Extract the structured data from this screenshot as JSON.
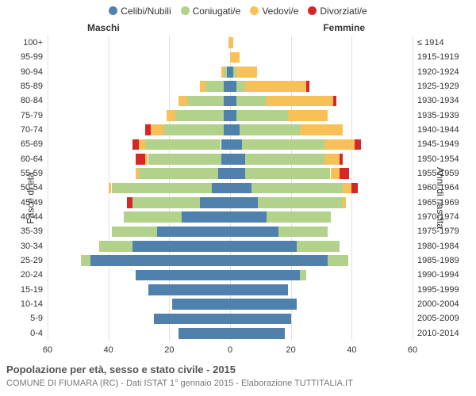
{
  "legend": {
    "items": [
      {
        "label": "Celibi/Nubili",
        "color": "#4f81ac"
      },
      {
        "label": "Coniugati/e",
        "color": "#b2d18b"
      },
      {
        "label": "Vedovi/e",
        "color": "#f8c158"
      },
      {
        "label": "Divorziati/e",
        "color": "#d62728"
      }
    ]
  },
  "header": {
    "male": "Maschi",
    "female": "Femmine"
  },
  "axis_left_title": "Fasce di età",
  "axis_right_title": "Anni di nascita",
  "x_axis": {
    "min": -60,
    "max": 60,
    "ticks": [
      -60,
      -40,
      -20,
      0,
      20,
      40,
      60
    ],
    "tick_labels": [
      "60",
      "40",
      "20",
      "0",
      "20",
      "40",
      "60"
    ]
  },
  "colors": {
    "single": "#4f81ac",
    "married": "#b2d18b",
    "widowed": "#f8c158",
    "divorced": "#d62728",
    "bg": "#ffffff",
    "grid": "#e0e0e0",
    "text": "#333333"
  },
  "rows": [
    {
      "age": "100+",
      "birth": "≤ 1914",
      "m": [
        0,
        0,
        0.5,
        0
      ],
      "f": [
        0,
        0,
        1,
        0
      ]
    },
    {
      "age": "95-99",
      "birth": "1915-1919",
      "m": [
        0,
        0,
        0,
        0
      ],
      "f": [
        0,
        0,
        3,
        0
      ]
    },
    {
      "age": "90-94",
      "birth": "1920-1924",
      "m": [
        1,
        1,
        1,
        0
      ],
      "f": [
        1,
        1,
        7,
        0
      ]
    },
    {
      "age": "85-89",
      "birth": "1925-1929",
      "m": [
        2,
        6,
        2,
        0
      ],
      "f": [
        2,
        3,
        20,
        1
      ]
    },
    {
      "age": "80-84",
      "birth": "1930-1934",
      "m": [
        2,
        12,
        3,
        0
      ],
      "f": [
        2,
        10,
        22,
        1
      ]
    },
    {
      "age": "75-79",
      "birth": "1935-1939",
      "m": [
        2,
        16,
        3,
        0
      ],
      "f": [
        2,
        17,
        13,
        0
      ]
    },
    {
      "age": "70-74",
      "birth": "1940-1944",
      "m": [
        2,
        20,
        4,
        2
      ],
      "f": [
        3,
        20,
        14,
        0
      ]
    },
    {
      "age": "65-69",
      "birth": "1945-1949",
      "m": [
        3,
        25,
        2,
        2
      ],
      "f": [
        4,
        27,
        10,
        2
      ]
    },
    {
      "age": "60-64",
      "birth": "1950-1954",
      "m": [
        3,
        24,
        1,
        3
      ],
      "f": [
        5,
        26,
        5,
        1
      ]
    },
    {
      "age": "55-59",
      "birth": "1955-1959",
      "m": [
        4,
        26,
        1,
        0
      ],
      "f": [
        5,
        28,
        3,
        3
      ]
    },
    {
      "age": "50-54",
      "birth": "1960-1964",
      "m": [
        6,
        33,
        1,
        0
      ],
      "f": [
        7,
        30,
        3,
        2
      ]
    },
    {
      "age": "45-49",
      "birth": "1965-1969",
      "m": [
        10,
        22,
        0,
        2
      ],
      "f": [
        9,
        28,
        1,
        0
      ]
    },
    {
      "age": "40-44",
      "birth": "1970-1974",
      "m": [
        16,
        19,
        0,
        0
      ],
      "f": [
        12,
        21,
        0,
        0
      ]
    },
    {
      "age": "35-39",
      "birth": "1975-1979",
      "m": [
        24,
        15,
        0,
        0
      ],
      "f": [
        16,
        16,
        0,
        0
      ]
    },
    {
      "age": "30-34",
      "birth": "1980-1984",
      "m": [
        32,
        11,
        0,
        0
      ],
      "f": [
        22,
        14,
        0,
        0
      ]
    },
    {
      "age": "25-29",
      "birth": "1985-1989",
      "m": [
        46,
        3,
        0,
        0
      ],
      "f": [
        32,
        7,
        0,
        0
      ]
    },
    {
      "age": "20-24",
      "birth": "1990-1994",
      "m": [
        31,
        0,
        0,
        0
      ],
      "f": [
        23,
        2,
        0,
        0
      ]
    },
    {
      "age": "15-19",
      "birth": "1995-1999",
      "m": [
        27,
        0,
        0,
        0
      ],
      "f": [
        19,
        0,
        0,
        0
      ]
    },
    {
      "age": "10-14",
      "birth": "2000-2004",
      "m": [
        19,
        0,
        0,
        0
      ],
      "f": [
        22,
        0,
        0,
        0
      ]
    },
    {
      "age": "5-9",
      "birth": "2005-2009",
      "m": [
        25,
        0,
        0,
        0
      ],
      "f": [
        20,
        0,
        0,
        0
      ]
    },
    {
      "age": "0-4",
      "birth": "2010-2014",
      "m": [
        17,
        0,
        0,
        0
      ],
      "f": [
        18,
        0,
        0,
        0
      ]
    }
  ],
  "title": "Popolazione per età, sesso e stato civile - 2015",
  "subtitle": "COMUNE DI FIUMARA (RC) - Dati ISTAT 1° gennaio 2015 - Elaborazione TUTTITALIA.IT"
}
